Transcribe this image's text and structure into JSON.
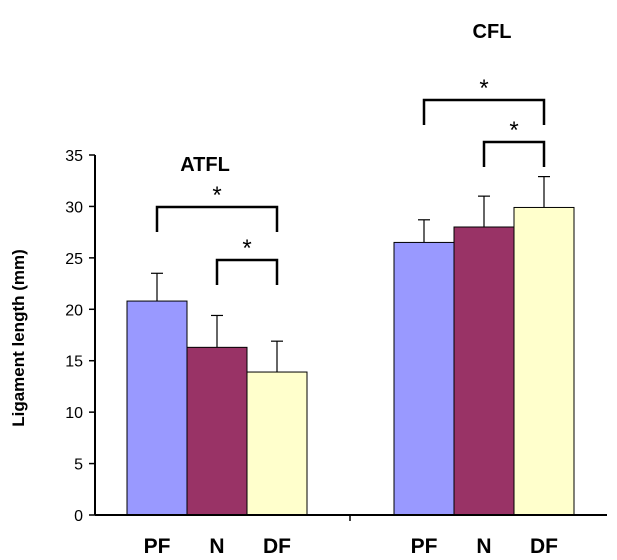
{
  "chart_data": {
    "type": "bar",
    "ylabel": "Ligament length (mm)",
    "ylim": [
      0,
      35
    ],
    "yticks": [
      0,
      5,
      10,
      15,
      20,
      25,
      30,
      35
    ],
    "grid": false,
    "categories": [
      "PF",
      "N",
      "DF"
    ],
    "groups": [
      {
        "name": "ATFL",
        "values": [
          20.8,
          16.3,
          13.9
        ],
        "errors": [
          2.7,
          3.1,
          3.0
        ],
        "significance": [
          {
            "from": "PF",
            "to": "DF",
            "label": "*"
          },
          {
            "from": "N",
            "to": "DF",
            "label": "*"
          }
        ]
      },
      {
        "name": "CFL",
        "values": [
          26.5,
          28.0,
          29.9
        ],
        "errors": [
          2.2,
          3.0,
          3.0
        ],
        "significance": [
          {
            "from": "PF",
            "to": "DF",
            "label": "*"
          },
          {
            "from": "N",
            "to": "DF",
            "label": "*"
          }
        ]
      }
    ],
    "bar_colors": [
      "#9999ff",
      "#993366",
      "#ffffcc"
    ]
  }
}
